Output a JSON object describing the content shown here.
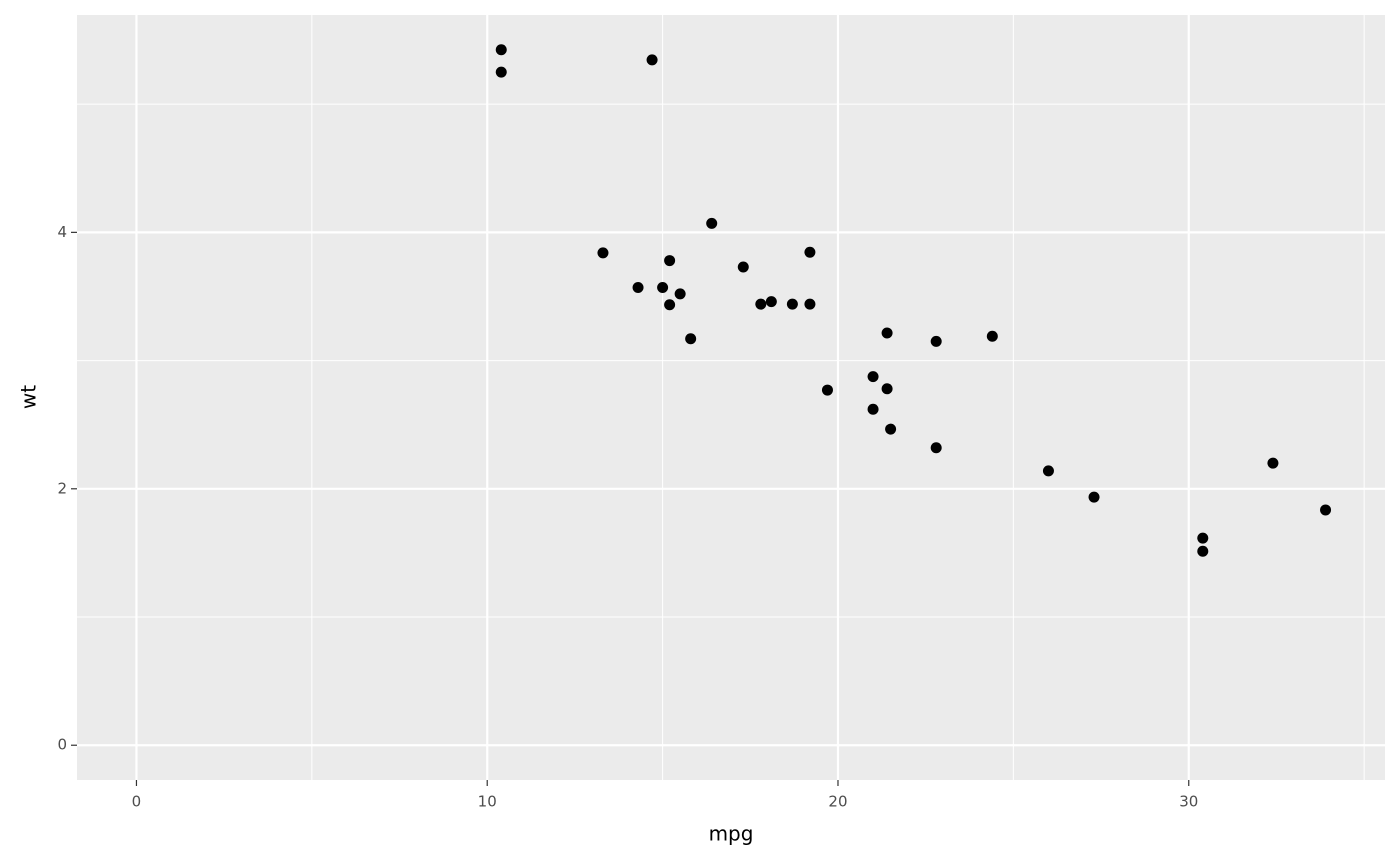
{
  "chart_data": {
    "type": "scatter",
    "x_label": "mpg",
    "y_label": "wt",
    "x": [
      21.0,
      21.0,
      22.8,
      21.4,
      18.7,
      18.1,
      14.3,
      24.4,
      22.8,
      19.2,
      17.8,
      16.4,
      17.3,
      15.2,
      10.4,
      10.4,
      14.7,
      32.4,
      30.4,
      33.9,
      21.5,
      15.5,
      15.2,
      13.3,
      19.2,
      27.3,
      26.0,
      30.4,
      15.8,
      19.7,
      15.0,
      21.4
    ],
    "y": [
      2.62,
      2.875,
      2.32,
      3.215,
      3.44,
      3.46,
      3.57,
      3.19,
      3.15,
      3.44,
      3.44,
      4.07,
      3.73,
      3.78,
      5.25,
      5.424,
      5.345,
      2.2,
      1.615,
      1.835,
      2.465,
      3.52,
      3.435,
      3.84,
      3.845,
      1.935,
      2.14,
      1.513,
      3.17,
      2.77,
      3.57,
      2.78
    ],
    "color": "#000000",
    "xlim": [
      -1.695,
      35.595
    ],
    "ylim": [
      -0.2712,
      5.6952
    ],
    "xticks": [
      0,
      10,
      20,
      30
    ],
    "yticks": [
      0,
      2,
      4
    ],
    "x_minor_grid": [
      5,
      15,
      25,
      35
    ],
    "y_minor_grid": [
      1,
      3,
      5
    ],
    "grid": true
  }
}
